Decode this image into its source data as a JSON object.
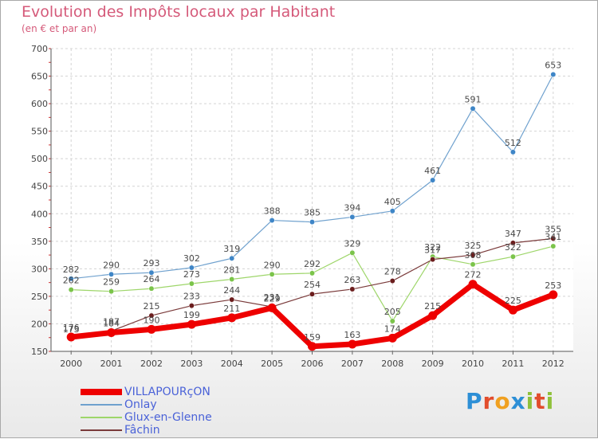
{
  "title": "Evolution des Impôts locaux par Habitant",
  "subtitle": "(en € et par an)",
  "logo": {
    "text": "Proxiti",
    "letter_colors": [
      "#2d8fd6",
      "#e24d2c",
      "#f0a020",
      "#2d8fd6",
      "#8fc13b",
      "#e24d2c",
      "#8fc13b"
    ]
  },
  "chart_data": {
    "type": "line",
    "title": "Evolution des Impôts locaux par Habitant",
    "subtitle": "(en € et par an)",
    "xlabel": "",
    "ylabel": "",
    "categories": [
      "2000",
      "2001",
      "2002",
      "2003",
      "2004",
      "2005",
      "2006",
      "2007",
      "2008",
      "2009",
      "2010",
      "2011",
      "2012"
    ],
    "ylim": [
      150,
      700
    ],
    "yticks": [
      150,
      200,
      250,
      300,
      350,
      400,
      450,
      500,
      550,
      600,
      650,
      700
    ],
    "grid": true,
    "legend_position": "bottom-left",
    "series": [
      {
        "name": "Onlay",
        "color": "#6fa1ce",
        "marker": "#3f86c7",
        "width": 1.2,
        "values": [
          282,
          290,
          293,
          302,
          319,
          388,
          385,
          394,
          405,
          461,
          591,
          512,
          653
        ]
      },
      {
        "name": "Glux-en-Glenne",
        "color": "#9ed66a",
        "marker": "#7bc44a",
        "width": 1.2,
        "values": [
          262,
          259,
          264,
          273,
          281,
          290,
          292,
          329,
          205,
          322,
          308,
          322,
          341
        ]
      },
      {
        "name": "Fâchin",
        "color": "#7a3a3a",
        "marker": "#6b1d1d",
        "width": 1.2,
        "values": [
          173,
          187,
          215,
          233,
          244,
          231,
          254,
          263,
          278,
          317,
          325,
          347,
          355
        ]
      },
      {
        "name": "VILLAPOURçON",
        "color": "#ee0000",
        "marker": "#ee0000",
        "width": 7,
        "values": [
          176,
          184,
          190,
          199,
          211,
          229,
          159,
          163,
          174,
          215,
          272,
          225,
          253
        ]
      }
    ],
    "legend_order": [
      "VILLAPOURçON",
      "Onlay",
      "Glux-en-Glenne",
      "Fâchin"
    ]
  }
}
